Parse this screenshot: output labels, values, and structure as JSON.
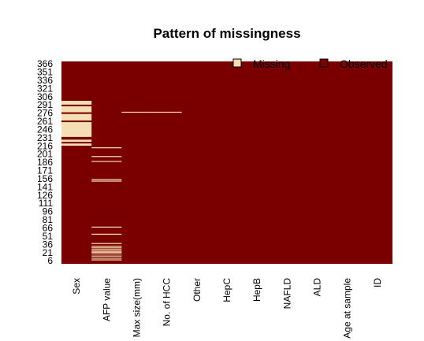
{
  "chart_data": {
    "type": "heatmap",
    "title": "Pattern of missingness",
    "xlabel": "",
    "ylabel": "",
    "columns": [
      "Sex",
      "AFP value",
      "Max size(mm)",
      "No. of HCC",
      "Other",
      "HepC",
      "HepB",
      "NAFLD",
      "ALD",
      "Age at sample",
      "ID"
    ],
    "y_ticks": [
      "366",
      "351",
      "336",
      "321",
      "306",
      "291",
      "276",
      "261",
      "246",
      "231",
      "216",
      "201",
      "186",
      "171",
      "156",
      "141",
      "126",
      "111",
      "96",
      "81",
      "66",
      "51",
      "36",
      "21",
      "6"
    ],
    "row_range": [
      1,
      370
    ],
    "legend": {
      "position": "top-right",
      "items": [
        "Missing",
        "Observed"
      ]
    },
    "colors": {
      "missing": "#f5deb3",
      "observed": "#7a0000"
    },
    "missing_rows": {
      "Sex": [
        [
          217,
          220
        ],
        [
          224,
          227
        ],
        [
          233,
          259
        ],
        [
          263,
          274
        ],
        [
          278,
          288
        ],
        [
          292,
          298
        ]
      ],
      "AFP value": [
        [
          8,
          8
        ],
        [
          11,
          11
        ],
        [
          15,
          15
        ],
        [
          19,
          19
        ],
        [
          22,
          22
        ],
        [
          24,
          24
        ],
        [
          27,
          27
        ],
        [
          30,
          30
        ],
        [
          33,
          33
        ],
        [
          38,
          38
        ],
        [
          55,
          55
        ],
        [
          68,
          68
        ],
        [
          152,
          152
        ],
        [
          155,
          155
        ],
        [
          188,
          188
        ],
        [
          197,
          197
        ],
        [
          213,
          213
        ]
      ],
      "Max size(mm)": [
        [
          278,
          278
        ]
      ],
      "No. of HCC": [
        [
          278,
          278
        ]
      ],
      "Other": [],
      "HepC": [],
      "HepB": [],
      "NAFLD": [],
      "ALD": [],
      "Age at sample": [],
      "ID": []
    }
  }
}
